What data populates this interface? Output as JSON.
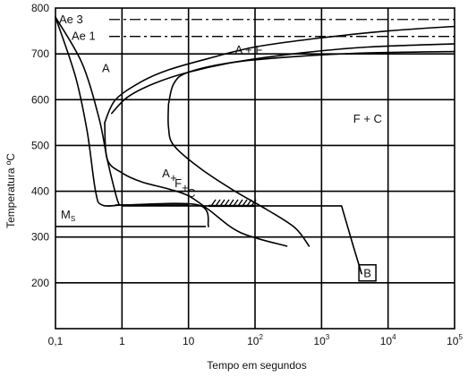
{
  "chart_data": {
    "type": "line",
    "title": "",
    "xlabel": "Tempo em segundos",
    "ylabel": "Temperatura ºC",
    "xscale": "log",
    "xlim": [
      0.1,
      100000
    ],
    "ylim": [
      100,
      800
    ],
    "x_ticks": [
      {
        "value": 0.1,
        "base": "0,1",
        "exp": ""
      },
      {
        "value": 1,
        "base": "1",
        "exp": ""
      },
      {
        "value": 10,
        "base": "10",
        "exp": ""
      },
      {
        "value": 100,
        "base": "10",
        "exp": "2"
      },
      {
        "value": 1000,
        "base": "10",
        "exp": "3"
      },
      {
        "value": 10000,
        "base": "10",
        "exp": "4"
      },
      {
        "value": 100000,
        "base": "10",
        "exp": "5"
      }
    ],
    "y_ticks": [
      200,
      300,
      400,
      500,
      600,
      700,
      800
    ],
    "grid": true,
    "reference_lines": [
      {
        "label": "Ae 3",
        "y": 775,
        "style": "dash-dot"
      },
      {
        "label": "Ae 1",
        "y": 738,
        "style": "dash-dot"
      }
    ],
    "ms": {
      "label": "M",
      "subscript": "S",
      "y": 323,
      "x_end": 20
    },
    "series": [
      {
        "points": [
          [
            0.1,
            780
          ],
          [
            0.2,
            650
          ],
          [
            0.3,
            530
          ],
          [
            0.4,
            400
          ],
          [
            0.5,
            370
          ],
          [
            1.0,
            370
          ],
          [
            1.5,
            370
          ],
          [
            10,
            370
          ]
        ]
      },
      {
        "points": [
          [
            0.1,
            780
          ],
          [
            0.25,
            680
          ],
          [
            0.45,
            560
          ],
          [
            0.6,
            470
          ],
          [
            0.8,
            395
          ],
          [
            0.9,
            372
          ],
          [
            1.0,
            370
          ],
          [
            14,
            370
          ],
          [
            20,
            323
          ]
        ]
      },
      {
        "points": [
          [
            0.55,
            550
          ],
          [
            0.8,
            600
          ],
          [
            2,
            640
          ],
          [
            5,
            665
          ],
          [
            20,
            690
          ],
          [
            100,
            715
          ],
          [
            1000,
            735
          ],
          [
            10000,
            750
          ],
          [
            100000,
            760
          ]
        ]
      },
      {
        "points": [
          [
            0.55,
            550
          ],
          [
            0.6,
            470
          ],
          [
            1,
            440
          ],
          [
            2,
            420
          ],
          [
            5,
            405
          ],
          [
            10,
            390
          ],
          [
            20,
            360
          ],
          [
            60,
            310
          ],
          [
            300,
            280
          ]
        ]
      },
      {
        "points": [
          [
            0.7,
            570
          ],
          [
            1.2,
            605
          ],
          [
            3,
            635
          ],
          [
            10,
            660
          ],
          [
            50,
            682
          ],
          [
            500,
            702
          ],
          [
            5000,
            715
          ],
          [
            100000,
            722
          ]
        ]
      },
      {
        "points": [
          [
            5,
            590
          ],
          [
            6,
            635
          ],
          [
            10,
            660
          ],
          [
            50,
            682
          ],
          [
            500,
            695
          ],
          [
            5000,
            702
          ],
          [
            100000,
            705
          ]
        ]
      },
      {
        "points": [
          [
            5,
            590
          ],
          [
            5,
            540
          ],
          [
            6,
            500
          ],
          [
            15,
            450
          ],
          [
            50,
            400
          ],
          [
            150,
            360
          ],
          [
            400,
            320
          ],
          [
            650,
            280
          ]
        ]
      },
      {
        "points": [
          [
            1,
            368
          ],
          [
            2000,
            368
          ],
          [
            3000,
            280
          ],
          [
            4000,
            220
          ]
        ]
      }
    ],
    "hatched_segment": {
      "x": [
        20,
        100
      ],
      "y": 368
    },
    "annotations": [
      {
        "text": "A",
        "x": 0.5,
        "y": 660
      },
      {
        "text": "A + F",
        "x": 50,
        "y": 700
      },
      {
        "text": "F + C",
        "x": 3000,
        "y": 550
      },
      {
        "text": "A+F+C",
        "x": 4,
        "y": 430
      },
      {
        "text": "B",
        "x": 4000,
        "y": 210
      }
    ]
  }
}
